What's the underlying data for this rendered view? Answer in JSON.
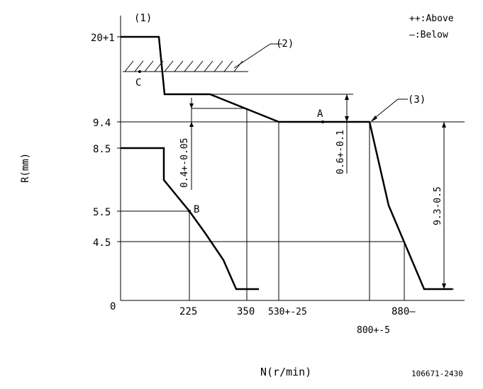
{
  "diagram": {
    "axis": {
      "y_label": "R(mm)",
      "x_label": "N(r/min)"
    },
    "y_ticks": [
      "20+1",
      "9.4",
      "8.5",
      "5.5",
      "4.5",
      "0"
    ],
    "x_ticks": [
      "225",
      "350",
      "530+-25",
      "880—",
      "800+-5"
    ],
    "callouts": [
      "(1)",
      "(2)",
      "(3)"
    ],
    "points": [
      "A",
      "B",
      "C"
    ],
    "dimensions": [
      "0.4+-0.05",
      "0.6+-0.1",
      "9.3-0.5"
    ],
    "legend": [
      "++:Above",
      "—:Below"
    ],
    "part_number": "106671-2430"
  }
}
